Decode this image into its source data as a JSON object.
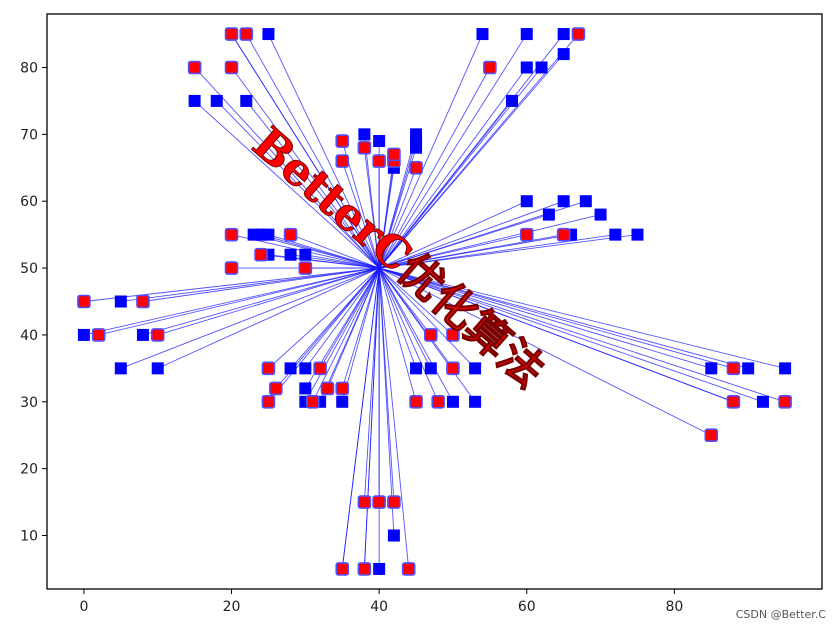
{
  "chart_data": {
    "type": "scatter",
    "title": "",
    "xlabel": "",
    "ylabel": "",
    "xlim": [
      -5,
      100
    ],
    "ylim": [
      2,
      88
    ],
    "xticks": [
      0,
      20,
      40,
      60,
      80
    ],
    "yticks": [
      10,
      20,
      30,
      40,
      50,
      60,
      70,
      80
    ],
    "grid": false,
    "hub": [
      40,
      50
    ],
    "colors": {
      "edge": "#1a1aff",
      "blue_node": "#0000ff",
      "red_node": "#ff0000",
      "red_border": "#5050ff"
    },
    "series": [
      {
        "marker": "blue-square",
        "points": [
          [
            0,
            40
          ],
          [
            5,
            45
          ],
          [
            5,
            35
          ],
          [
            8,
            40
          ],
          [
            10,
            35
          ],
          [
            15,
            75
          ],
          [
            18,
            75
          ],
          [
            20,
            85
          ],
          [
            22,
            75
          ],
          [
            25,
            85
          ],
          [
            23,
            55
          ],
          [
            24,
            55
          ],
          [
            25,
            55
          ],
          [
            25,
            52
          ],
          [
            28,
            52
          ],
          [
            30,
            52
          ],
          [
            28,
            35
          ],
          [
            30,
            35
          ],
          [
            30,
            32
          ],
          [
            30,
            30
          ],
          [
            32,
            30
          ],
          [
            35,
            30
          ],
          [
            38,
            70
          ],
          [
            40,
            69
          ],
          [
            42,
            65
          ],
          [
            45,
            70
          ],
          [
            45,
            69
          ],
          [
            45,
            68
          ],
          [
            40,
            5
          ],
          [
            42,
            10
          ],
          [
            35,
            5
          ],
          [
            38,
            5
          ],
          [
            45,
            35
          ],
          [
            47,
            35
          ],
          [
            50,
            30
          ],
          [
            53,
            35
          ],
          [
            53,
            30
          ],
          [
            54,
            85
          ],
          [
            58,
            75
          ],
          [
            60,
            85
          ],
          [
            60,
            80
          ],
          [
            62,
            80
          ],
          [
            65,
            82
          ],
          [
            65,
            85
          ],
          [
            60,
            60
          ],
          [
            63,
            58
          ],
          [
            65,
            60
          ],
          [
            66,
            55
          ],
          [
            68,
            60
          ],
          [
            70,
            58
          ],
          [
            72,
            55
          ],
          [
            75,
            55
          ],
          [
            85,
            35
          ],
          [
            90,
            35
          ],
          [
            92,
            30
          ],
          [
            95,
            35
          ],
          [
            88,
            30
          ]
        ]
      },
      {
        "marker": "red-square",
        "points": [
          [
            0,
            45
          ],
          [
            2,
            40
          ],
          [
            8,
            45
          ],
          [
            10,
            40
          ],
          [
            15,
            80
          ],
          [
            20,
            80
          ],
          [
            20,
            85
          ],
          [
            22,
            85
          ],
          [
            20,
            55
          ],
          [
            20,
            50
          ],
          [
            24,
            52
          ],
          [
            28,
            55
          ],
          [
            30,
            50
          ],
          [
            25,
            35
          ],
          [
            26,
            32
          ],
          [
            25,
            30
          ],
          [
            32,
            35
          ],
          [
            33,
            32
          ],
          [
            35,
            32
          ],
          [
            31,
            30
          ],
          [
            35,
            69
          ],
          [
            35,
            66
          ],
          [
            38,
            68
          ],
          [
            40,
            66
          ],
          [
            42,
            66
          ],
          [
            42,
            67
          ],
          [
            45,
            65
          ],
          [
            38,
            15
          ],
          [
            40,
            15
          ],
          [
            42,
            15
          ],
          [
            35,
            5
          ],
          [
            38,
            5
          ],
          [
            44,
            5
          ],
          [
            45,
            30
          ],
          [
            47,
            40
          ],
          [
            48,
            30
          ],
          [
            50,
            40
          ],
          [
            50,
            35
          ],
          [
            55,
            80
          ],
          [
            67,
            85
          ],
          [
            60,
            55
          ],
          [
            65,
            55
          ],
          [
            85,
            25
          ],
          [
            88,
            35
          ],
          [
            88,
            30
          ],
          [
            95,
            30
          ]
        ]
      }
    ]
  },
  "watermark": {
    "text": "BetterC优化算法"
  },
  "credit": "CSDN @Better.C"
}
